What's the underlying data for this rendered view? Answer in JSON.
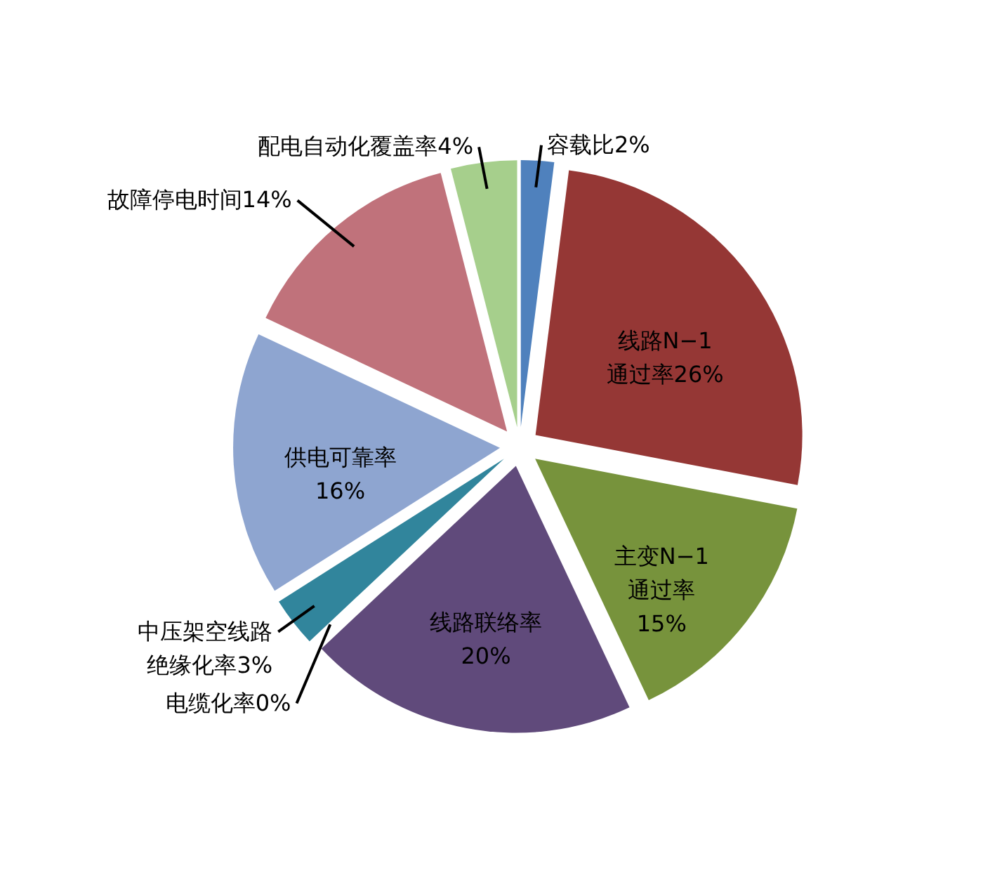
{
  "chart_data": {
    "type": "pie",
    "categories": [
      "容载比2%",
      "线路N−1\n通过率26%",
      "主变N−1\n通过率\n15%",
      "线路联络率\n20%",
      "电缆化率0%",
      "中压架空线路绝缘化率3%",
      "供电可靠率\n16%",
      "故障停电时间14%",
      "配电自动化覆盖率4%"
    ],
    "values": [
      2,
      26,
      15,
      20,
      0,
      3,
      16,
      14,
      4
    ],
    "colors": [
      "#4f81bd",
      "#953735",
      "#77933c",
      "#604a7b",
      "#c0504d",
      "#31859c",
      "#8ea5d0",
      "#c0727b",
      "#a6cf8c"
    ]
  }
}
